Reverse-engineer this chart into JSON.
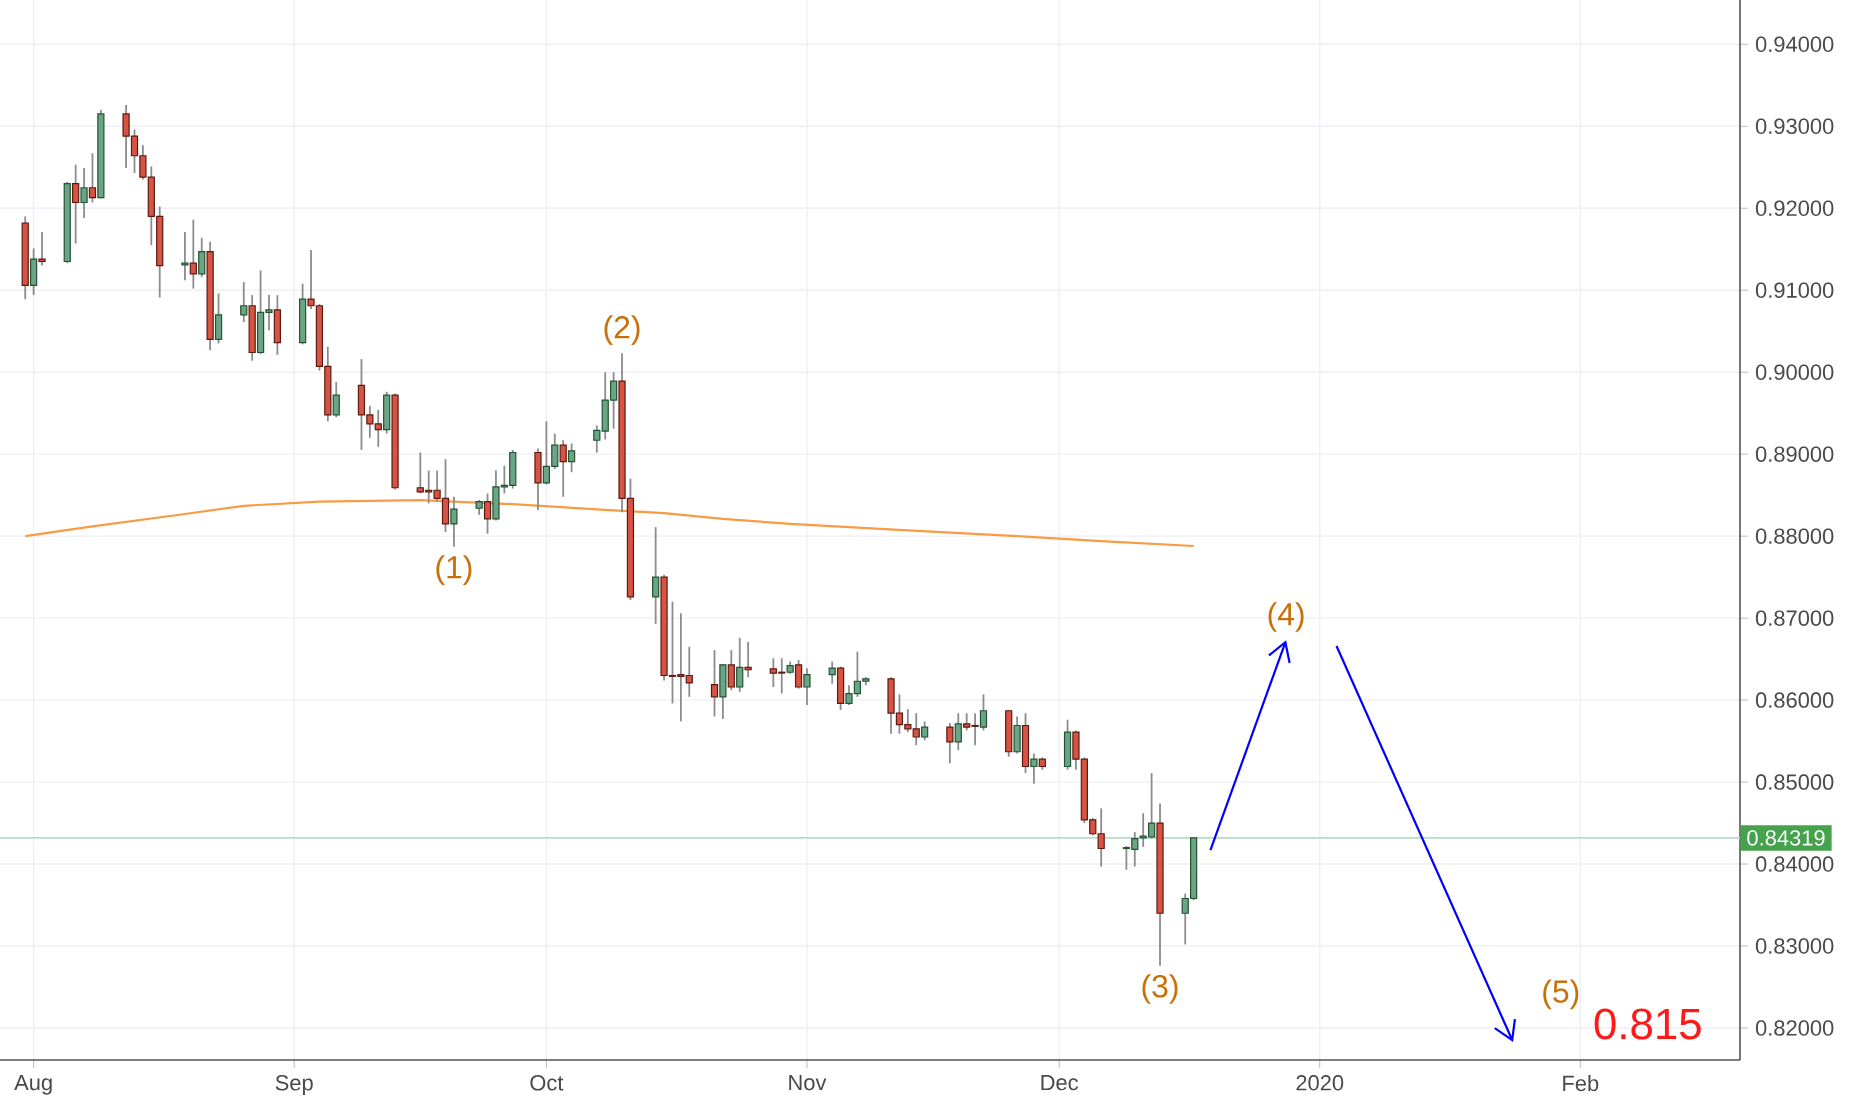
{
  "chart_data": {
    "type": "candlestick",
    "x": [
      "2019-07-31",
      "2019-08-01",
      "2019-08-02",
      "2019-08-05",
      "2019-08-06",
      "2019-08-07",
      "2019-08-08",
      "2019-08-09",
      "2019-08-12",
      "2019-08-13",
      "2019-08-14",
      "2019-08-15",
      "2019-08-16",
      "2019-08-19",
      "2019-08-20",
      "2019-08-21",
      "2019-08-22",
      "2019-08-23",
      "2019-08-26",
      "2019-08-27",
      "2019-08-28",
      "2019-08-29",
      "2019-08-30",
      "2019-09-02",
      "2019-09-03",
      "2019-09-04",
      "2019-09-05",
      "2019-09-06",
      "2019-09-09",
      "2019-09-10",
      "2019-09-11",
      "2019-09-12",
      "2019-09-13",
      "2019-09-16",
      "2019-09-17",
      "2019-09-18",
      "2019-09-19",
      "2019-09-20",
      "2019-09-23",
      "2019-09-24",
      "2019-09-25",
      "2019-09-26",
      "2019-09-27",
      "2019-09-30",
      "2019-10-01",
      "2019-10-02",
      "2019-10-03",
      "2019-10-04",
      "2019-10-07",
      "2019-10-08",
      "2019-10-09",
      "2019-10-10",
      "2019-10-11",
      "2019-10-14",
      "2019-10-15",
      "2019-10-16",
      "2019-10-17",
      "2019-10-18",
      "2019-10-21",
      "2019-10-22",
      "2019-10-23",
      "2019-10-24",
      "2019-10-25",
      "2019-10-28",
      "2019-10-29",
      "2019-10-30",
      "2019-10-31",
      "2019-11-01",
      "2019-11-04",
      "2019-11-05",
      "2019-11-06",
      "2019-11-07",
      "2019-11-08",
      "2019-11-11",
      "2019-11-12",
      "2019-11-13",
      "2019-11-14",
      "2019-11-15",
      "2019-11-18",
      "2019-11-19",
      "2019-11-20",
      "2019-11-21",
      "2019-11-22",
      "2019-11-25",
      "2019-11-26",
      "2019-11-27",
      "2019-11-28",
      "2019-11-29",
      "2019-12-02",
      "2019-12-03",
      "2019-12-04",
      "2019-12-05",
      "2019-12-06",
      "2019-12-09",
      "2019-12-10",
      "2019-12-11",
      "2019-12-12",
      "2019-12-13",
      "2019-12-16",
      "2019-12-17"
    ],
    "ohlc": [
      [
        0.9182,
        0.919,
        0.9089,
        0.9106
      ],
      [
        0.9106,
        0.9151,
        0.9094,
        0.9138
      ],
      [
        0.9138,
        0.9171,
        0.913,
        0.9135
      ],
      [
        0.9135,
        0.9232,
        0.9133,
        0.923
      ],
      [
        0.923,
        0.9253,
        0.9157,
        0.9207
      ],
      [
        0.9207,
        0.9249,
        0.9188,
        0.9225
      ],
      [
        0.9225,
        0.9267,
        0.9207,
        0.9213
      ],
      [
        0.9213,
        0.932,
        0.9212,
        0.9315
      ],
      [
        0.9315,
        0.9326,
        0.9249,
        0.9288
      ],
      [
        0.9288,
        0.9296,
        0.9243,
        0.9264
      ],
      [
        0.9264,
        0.9277,
        0.9235,
        0.9238
      ],
      [
        0.9238,
        0.9251,
        0.9155,
        0.919
      ],
      [
        0.919,
        0.9202,
        0.9091,
        0.913
      ],
      [
        0.9131,
        0.9171,
        0.9112,
        0.9133
      ],
      [
        0.9133,
        0.9186,
        0.9102,
        0.912
      ],
      [
        0.912,
        0.9164,
        0.9116,
        0.9147
      ],
      [
        0.9147,
        0.9159,
        0.9027,
        0.904
      ],
      [
        0.904,
        0.9096,
        0.9035,
        0.907
      ],
      [
        0.907,
        0.911,
        0.9061,
        0.9081
      ],
      [
        0.9081,
        0.9094,
        0.9014,
        0.9024
      ],
      [
        0.9024,
        0.9124,
        0.9022,
        0.9073
      ],
      [
        0.9073,
        0.9094,
        0.9051,
        0.9076
      ],
      [
        0.9076,
        0.9094,
        0.9021,
        0.9036
      ],
      [
        0.9036,
        0.9108,
        0.9034,
        0.9089
      ],
      [
        0.9089,
        0.9149,
        0.9077,
        0.9081
      ],
      [
        0.9081,
        0.9083,
        0.9002,
        0.9007
      ],
      [
        0.9007,
        0.9031,
        0.894,
        0.8948
      ],
      [
        0.8948,
        0.8988,
        0.8945,
        0.8972
      ],
      [
        0.8984,
        0.9016,
        0.8905,
        0.8948
      ],
      [
        0.8948,
        0.8959,
        0.892,
        0.8937
      ],
      [
        0.8937,
        0.8954,
        0.8909,
        0.893
      ],
      [
        0.893,
        0.8976,
        0.8925,
        0.8972
      ],
      [
        0.8972,
        0.8974,
        0.8857,
        0.8859
      ],
      [
        0.8859,
        0.8902,
        0.8852,
        0.8854
      ],
      [
        0.8856,
        0.888,
        0.884,
        0.8854
      ],
      [
        0.8856,
        0.888,
        0.8842,
        0.8846
      ],
      [
        0.8846,
        0.8894,
        0.8805,
        0.8815
      ],
      [
        0.8815,
        0.8848,
        0.8787,
        0.8833
      ],
      [
        0.8834,
        0.8844,
        0.8826,
        0.8842
      ],
      [
        0.8842,
        0.8852,
        0.8803,
        0.8821
      ],
      [
        0.8821,
        0.888,
        0.8819,
        0.886
      ],
      [
        0.886,
        0.8886,
        0.8852,
        0.8862
      ],
      [
        0.8862,
        0.8905,
        0.8858,
        0.8902
      ],
      [
        0.8902,
        0.8907,
        0.8832,
        0.8865
      ],
      [
        0.8865,
        0.894,
        0.8863,
        0.8885
      ],
      [
        0.8885,
        0.8925,
        0.8882,
        0.8911
      ],
      [
        0.8911,
        0.8917,
        0.8848,
        0.8891
      ],
      [
        0.8891,
        0.8913,
        0.8878,
        0.8904
      ],
      [
        0.8917,
        0.8935,
        0.8902,
        0.8929
      ],
      [
        0.8928,
        0.9,
        0.8918,
        0.8966
      ],
      [
        0.8966,
        0.9,
        0.8931,
        0.8989
      ],
      [
        0.8989,
        0.9023,
        0.8829,
        0.8846
      ],
      [
        0.8846,
        0.887,
        0.8722,
        0.8726
      ],
      [
        0.8726,
        0.8811,
        0.8693,
        0.875
      ],
      [
        0.875,
        0.8753,
        0.8624,
        0.863
      ],
      [
        0.863,
        0.872,
        0.8596,
        0.8629
      ],
      [
        0.8631,
        0.8706,
        0.8574,
        0.8629
      ],
      [
        0.863,
        0.8665,
        0.8604,
        0.8621
      ],
      [
        0.8619,
        0.8661,
        0.858,
        0.8604
      ],
      [
        0.8604,
        0.8644,
        0.8577,
        0.8643
      ],
      [
        0.8643,
        0.8661,
        0.8612,
        0.8616
      ],
      [
        0.8616,
        0.8676,
        0.861,
        0.864
      ],
      [
        0.864,
        0.8671,
        0.8628,
        0.8637
      ],
      [
        0.8638,
        0.8651,
        0.8616,
        0.8633
      ],
      [
        0.8634,
        0.8651,
        0.8608,
        0.8633
      ],
      [
        0.8634,
        0.8647,
        0.8632,
        0.8642
      ],
      [
        0.8643,
        0.8649,
        0.8614,
        0.8616
      ],
      [
        0.8616,
        0.8639,
        0.8594,
        0.8631
      ],
      [
        0.8631,
        0.8647,
        0.862,
        0.8639
      ],
      [
        0.8639,
        0.8641,
        0.8588,
        0.8596
      ],
      [
        0.8596,
        0.8618,
        0.8594,
        0.8608
      ],
      [
        0.8608,
        0.8659,
        0.8604,
        0.8623
      ],
      [
        0.8623,
        0.8628,
        0.8618,
        0.8626
      ],
      [
        0.8626,
        0.8628,
        0.8559,
        0.8584
      ],
      [
        0.8584,
        0.8607,
        0.8559,
        0.857
      ],
      [
        0.857,
        0.8589,
        0.8561,
        0.8565
      ],
      [
        0.8565,
        0.8584,
        0.8545,
        0.8555
      ],
      [
        0.8555,
        0.8574,
        0.8551,
        0.8567
      ],
      [
        0.8567,
        0.8572,
        0.8523,
        0.8549
      ],
      [
        0.8549,
        0.8584,
        0.8539,
        0.8571
      ],
      [
        0.8571,
        0.8584,
        0.8563,
        0.8567
      ],
      [
        0.8569,
        0.8584,
        0.8545,
        0.8568
      ],
      [
        0.8567,
        0.8607,
        0.8563,
        0.8587
      ],
      [
        0.8587,
        0.8588,
        0.8531,
        0.8537
      ],
      [
        0.8537,
        0.858,
        0.8535,
        0.8569
      ],
      [
        0.8569,
        0.8584,
        0.8511,
        0.8519
      ],
      [
        0.8519,
        0.8535,
        0.8498,
        0.8528
      ],
      [
        0.8528,
        0.853,
        0.8515,
        0.8519
      ],
      [
        0.8519,
        0.8576,
        0.8515,
        0.8561
      ],
      [
        0.8561,
        0.8563,
        0.8515,
        0.8528
      ],
      [
        0.8528,
        0.853,
        0.845,
        0.8454
      ],
      [
        0.8454,
        0.8456,
        0.8435,
        0.8437
      ],
      [
        0.8437,
        0.8468,
        0.8397,
        0.8419
      ],
      [
        0.8419,
        0.8422,
        0.8393,
        0.842
      ],
      [
        0.8418,
        0.8439,
        0.8397,
        0.8431
      ],
      [
        0.8432,
        0.8462,
        0.8421,
        0.8434
      ],
      [
        0.8433,
        0.8511,
        0.8431,
        0.845
      ],
      [
        0.845,
        0.8474,
        0.8276,
        0.834
      ],
      [
        0.834,
        0.8364,
        0.8302,
        0.8358
      ],
      [
        0.8358,
        0.8432,
        0.8356,
        0.8432
      ]
    ],
    "series": [
      {
        "type": "line",
        "color": "#f89b45",
        "x": [
          "2019-07-31",
          "2019-08-08",
          "2019-08-19",
          "2019-08-26",
          "2019-09-04",
          "2019-09-16",
          "2019-09-27",
          "2019-10-08",
          "2019-10-15",
          "2019-10-22",
          "2019-10-30",
          "2019-11-13",
          "2019-11-26",
          "2019-12-06",
          "2019-12-17"
        ],
        "values": [
          0.88,
          0.8812,
          0.8827,
          0.8837,
          0.8842,
          0.8844,
          0.8839,
          0.8832,
          0.8828,
          0.8821,
          0.8815,
          0.8807,
          0.88,
          0.8794,
          0.8788
        ]
      },
      {
        "type": "line",
        "color": "#0000ff",
        "x": [
          "2019-12-19",
          "2019-12-28"
        ],
        "values": [
          0.8417,
          0.8673
        ]
      },
      {
        "type": "line",
        "color": "#0000ff",
        "x": [
          "2020-01-03",
          "2020-01-24"
        ],
        "values": [
          0.8666,
          0.8183
        ]
      }
    ],
    "ref_lines": [
      {
        "axis": "y",
        "value": 0.84319,
        "label": "0.84319",
        "color": "#b2dfc9"
      }
    ],
    "annotations": [
      {
        "text": "(1)",
        "x": "2019-09-20",
        "y": 0.8787
      },
      {
        "text": "(2)",
        "x": "2019-10-10",
        "y": 0.9023
      },
      {
        "text": "(3)",
        "x": "2019-12-13",
        "y": 0.8276
      },
      {
        "text": "(4)",
        "x": "2019-12-28",
        "y": 0.8673
      },
      "(5)",
      "0.815"
    ],
    "xlim": [
      "2019-07-28",
      "2020-02-20"
    ],
    "xticks": [
      {
        "value": "2019-08-01",
        "label": "Aug"
      },
      {
        "value": "2019-09-01",
        "label": "Sep"
      },
      {
        "value": "2019-10-01",
        "label": "Oct"
      },
      {
        "value": "2019-11-01",
        "label": "Nov"
      },
      {
        "value": "2019-12-01",
        "label": "Dec"
      },
      {
        "value": "2020-01-01",
        "label": "2020"
      },
      {
        "value": "2020-02-01",
        "label": "Feb"
      }
    ],
    "ylim": [
      0.8161,
      0.9454
    ],
    "yticks": [
      {
        "value": 0.82,
        "label": "0.82000"
      },
      {
        "value": 0.83,
        "label": "0.83000"
      },
      {
        "value": 0.84,
        "label": "0.84000"
      },
      {
        "value": 0.85,
        "label": "0.85000"
      },
      {
        "value": 0.86,
        "label": "0.86000"
      },
      {
        "value": 0.87,
        "label": "0.87000"
      },
      {
        "value": 0.88,
        "label": "0.88000"
      },
      {
        "value": 0.89,
        "label": "0.89000"
      },
      {
        "value": 0.9,
        "label": "0.90000"
      },
      {
        "value": 0.91,
        "label": "0.91000"
      },
      {
        "value": 0.92,
        "label": "0.92000"
      },
      {
        "value": 0.93,
        "label": "0.93000"
      },
      {
        "value": 0.94,
        "label": "0.94000"
      }
    ],
    "grid": true
  }
}
